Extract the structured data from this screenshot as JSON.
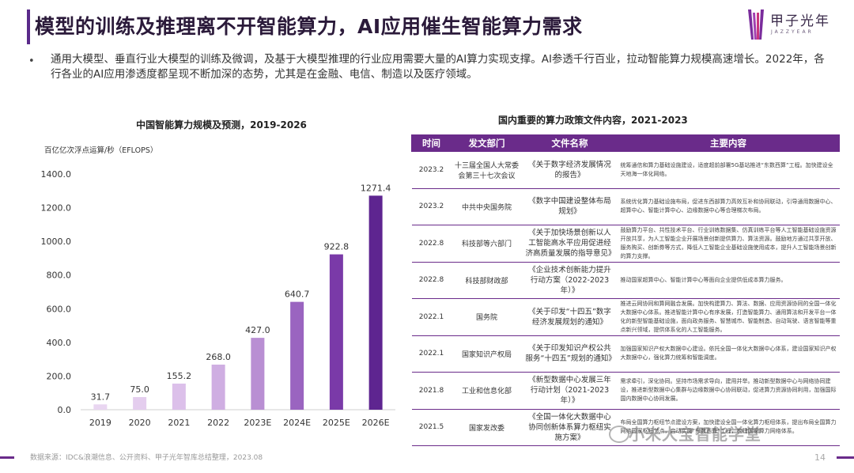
{
  "header": {
    "title": "模型的训练及推理离不开智能算力，AI应用催生智能算力需求",
    "logo_cn": "甲子光年",
    "logo_en": "JAZZYEAR"
  },
  "intro": {
    "bullet": "•",
    "text": "通用大模型、垂直行业大模型的训练及微调，及基于大模型推理的行业应用需要大量的AI算力实现支撑。AI参透千行百业，拉动智能算力规模高速增长。2022年，各行各业的AI应用渗透度都呈现不断加深的态势，尤其是在金融、电信、制造以及医疗领域。"
  },
  "chart_data": {
    "type": "bar",
    "title": "中国智能算力规模及预测，2019-2026",
    "ylabel": "百亿亿次浮点运算/秒（EFLOPS）",
    "categories": [
      "2019",
      "2020",
      "2021",
      "2022",
      "2023E",
      "2024E",
      "2025E",
      "2026E"
    ],
    "values": [
      31.7,
      75.0,
      155.2,
      268.0,
      427.0,
      640.7,
      922.8,
      1271.4
    ],
    "value_labels": [
      "31.7",
      "75.0",
      "155.2",
      "268.0",
      "427.0",
      "640.7",
      "922.8",
      "1271.4"
    ],
    "yticks": [
      "0.0",
      "200.0",
      "400.0",
      "600.0",
      "800.0",
      "1000.0",
      "1200.0",
      "1400.0"
    ],
    "ylim": [
      0,
      1400
    ],
    "grid": false,
    "colors": [
      "#e9d6f1",
      "#e4cdee",
      "#dcc0ea",
      "#cfaee2",
      "#b98fd3",
      "#9a64c0",
      "#7a3aa8",
      "#5e2590"
    ]
  },
  "table": {
    "title": "国内重要的算力政策文件内容，2021-2023",
    "headers": [
      "时间",
      "发文部门",
      "文件名称",
      "主要内容"
    ],
    "rows": [
      {
        "time": "2023.2",
        "dept": "十三届全国人大常委会第三十七次会议",
        "doc": "《关于数字经济发展情况的报告》",
        "content": "统筹通信和算力基础设施建设，适度超前部署5G基站推进“东数西算”工程。加快建设全天地海一体化网络。"
      },
      {
        "time": "2023.2",
        "dept": "中共中央国务院",
        "doc": "《数字中国建设整体布局规划》",
        "content": "系统优化算力基础设施布局，促进东西部算力高效互补和协同联动，引导通用数据中心、超算中心、智能计算中心、边缘数据中心等合理梯次布局。"
      },
      {
        "time": "2022.8",
        "dept": "科技部等六部门",
        "doc": "《关于加快场景创新以人工智能高水平应用促进经济高质量发展的指导意见》",
        "content": "鼓励算力平台、共性技术平台、行业训练数据集、仿真训练平台等人工智能基础设施资源开放共享，为人工智能企业开展场景创新提供算力、算法资源。鼓励地方通过共享开放、服务购买、创新券等方式，降低人工智能企业基础设施使用成本，提升人工智能场景创新的算力支撑。"
      },
      {
        "time": "2022.8",
        "dept": "科技部财政部",
        "doc": "《企业技术创新能力提升行动方案（2022-2023年）》",
        "content": "推动国家超算中心、智能计算中心等面向企业提供低成本算力服务。"
      },
      {
        "time": "2022.1",
        "dept": "国务院",
        "doc": "《关于印发“十四五”数字经济发展规划的通知》",
        "content": "推进云网协同和算网融合发展。加快构建算力、算法、数据、应用资源协同的全国一体化大数据中心体系。推进智能计算中心有序发展，打造智能算力、通用算法和开发平台一体化的新型智能基础设施，面向政务服务、智慧城市、智能制造、自动驾驶、语言智能等重点新兴领域，提供体系化的人工智能服务。"
      },
      {
        "time": "2022.1",
        "dept": "国家知识产权局",
        "doc": "《关于印发知识产权公共服务“十四五”规划的通知》",
        "content": "加强国家知识产权大数据中心建设。依托全国一体化大数据中心体系，建设国家知识产权大数据中心，强化算力统筹和智能调度。"
      },
      {
        "time": "2021.8",
        "dept": "工业和信息化部",
        "doc": "《新型数据中心发展三年行动计划（2021-2023年）》",
        "content": "需求牵引，深化协同。坚持市场需求导向，建用并举。推动新型数据中心与网络协同建设，推进新型数据中心集群与边缘数据中心协同联动，促进算力资源协同利用，加强国际国内数据中心协同发展。"
      },
      {
        "time": "2021.5",
        "dept": "国家发改委",
        "doc": "《全国一体化大数据中心协同创新体系算力枢纽实施方案》",
        "content": "布局全国算力枢纽节点建设方案，加快建设全国一体化算力枢纽体系，提出布局全国算力网络国家枢纽节点，启动实施“东数西算”工程，构建国家算力网络体系。"
      }
    ]
  },
  "footer": {
    "source": "数据来源：IDC&浪潮信息、公开资料、甲子光年智库总结整理，2023.08",
    "page": "14",
    "watermark": "小米大宝智能学堂"
  }
}
